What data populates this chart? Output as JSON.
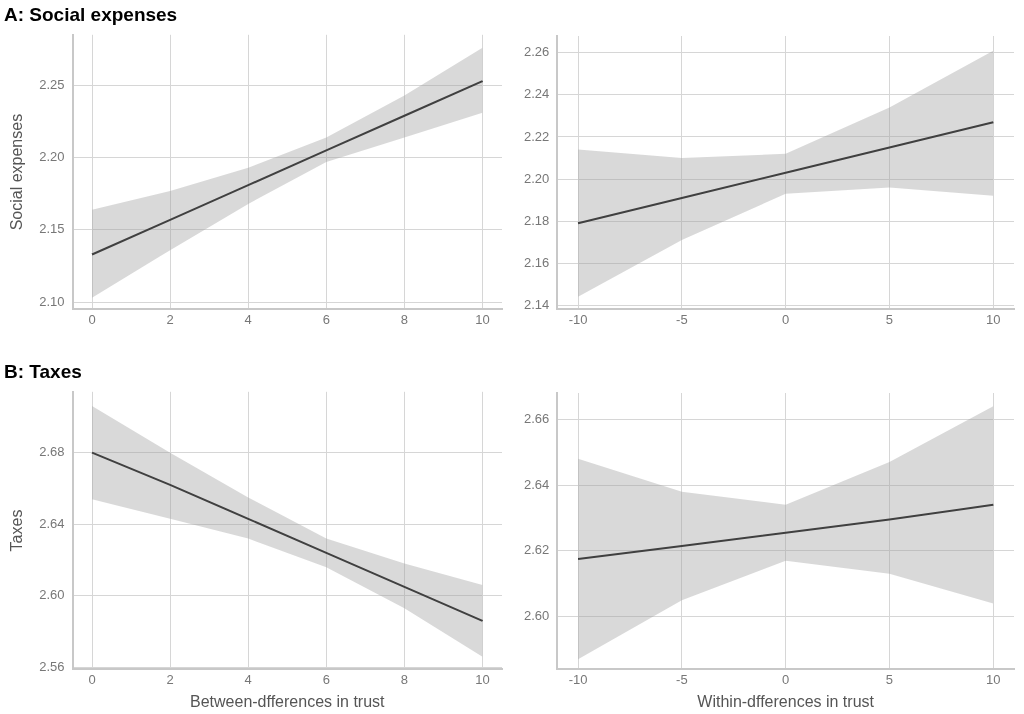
{
  "chart_data": [
    {
      "type": "line",
      "title": "A: Social expenses",
      "ylabel": "Social expenses",
      "xlim": [
        -0.5,
        10.5
      ],
      "xticks": [
        0,
        2,
        4,
        6,
        8,
        10
      ],
      "ylim": [
        2.095,
        2.285
      ],
      "yticks": [
        {
          "value": 2.1,
          "label": "2.10"
        },
        2.15,
        {
          "value": 2.2,
          "label": "2.20"
        },
        2.25
      ],
      "grid": true,
      "legend": false,
      "marker": "none",
      "line_style": "solid",
      "series": [
        {
          "color": "#000000",
          "x": [
            0,
            2,
            4,
            6,
            8,
            10
          ],
          "values": [
            2.133,
            2.157,
            2.181,
            2.205,
            2.229,
            2.253
          ],
          "lower": [
            2.103,
            2.136,
            2.168,
            2.197,
            2.214,
            2.231
          ],
          "upper": [
            2.164,
            2.177,
            2.193,
            2.214,
            2.243,
            2.276
          ]
        }
      ]
    },
    {
      "type": "line",
      "xlim": [
        -11,
        11
      ],
      "xticks": [
        -10,
        -5,
        0,
        5,
        10
      ],
      "ylim": [
        2.138,
        2.268
      ],
      "yticks": [
        2.14,
        2.16,
        2.18,
        {
          "value": 2.2,
          "label": "2.20"
        },
        2.22,
        2.24,
        2.26
      ],
      "grid": true,
      "legend": false,
      "marker": "none",
      "line_style": "solid",
      "series": [
        {
          "color": "#000000",
          "x": [
            -10,
            -5,
            0,
            5,
            10
          ],
          "values": [
            2.179,
            2.191,
            2.203,
            2.215,
            2.227
          ],
          "lower": [
            2.144,
            2.171,
            2.193,
            2.196,
            2.192
          ],
          "upper": [
            2.214,
            2.21,
            2.212,
            2.234,
            2.261
          ]
        }
      ]
    },
    {
      "type": "line",
      "title": "B: Taxes",
      "ylabel": "Taxes",
      "xlabel": "Between-dfferences in trust",
      "xlim": [
        -0.5,
        10.5
      ],
      "xticks": [
        0,
        2,
        4,
        6,
        8,
        10
      ],
      "ylim": [
        2.559,
        2.714
      ],
      "yticks": [
        2.56,
        {
          "value": 2.6,
          "label": "2.60"
        },
        2.64,
        2.68
      ],
      "grid": true,
      "legend": false,
      "marker": "none",
      "line_style": "solid",
      "series": [
        {
          "color": "#000000",
          "x": [
            0,
            2,
            4,
            6,
            8,
            10
          ],
          "values": [
            2.68,
            2.662,
            2.643,
            2.624,
            2.605,
            2.586
          ],
          "lower": [
            2.654,
            2.643,
            2.632,
            2.616,
            2.593,
            2.566
          ],
          "upper": [
            2.706,
            2.68,
            2.655,
            2.632,
            2.618,
            2.606
          ]
        }
      ]
    },
    {
      "type": "line",
      "xlabel": "Within-dfferences in trust",
      "xlim": [
        -11,
        11
      ],
      "xticks": [
        -10,
        -5,
        0,
        5,
        10
      ],
      "ylim": [
        2.584,
        2.668
      ],
      "yticks": [
        {
          "value": 2.6,
          "label": "2.60"
        },
        2.62,
        2.64,
        2.66
      ],
      "grid": true,
      "legend": false,
      "marker": "none",
      "line_style": "solid",
      "series": [
        {
          "color": "#000000",
          "x": [
            -10,
            -5,
            0,
            5,
            10
          ],
          "values": [
            2.6175,
            2.6215,
            2.6255,
            2.6295,
            2.634
          ],
          "lower": [
            2.587,
            2.605,
            2.617,
            2.613,
            2.604
          ],
          "upper": [
            2.648,
            2.638,
            2.634,
            2.647,
            2.664
          ]
        }
      ]
    }
  ]
}
